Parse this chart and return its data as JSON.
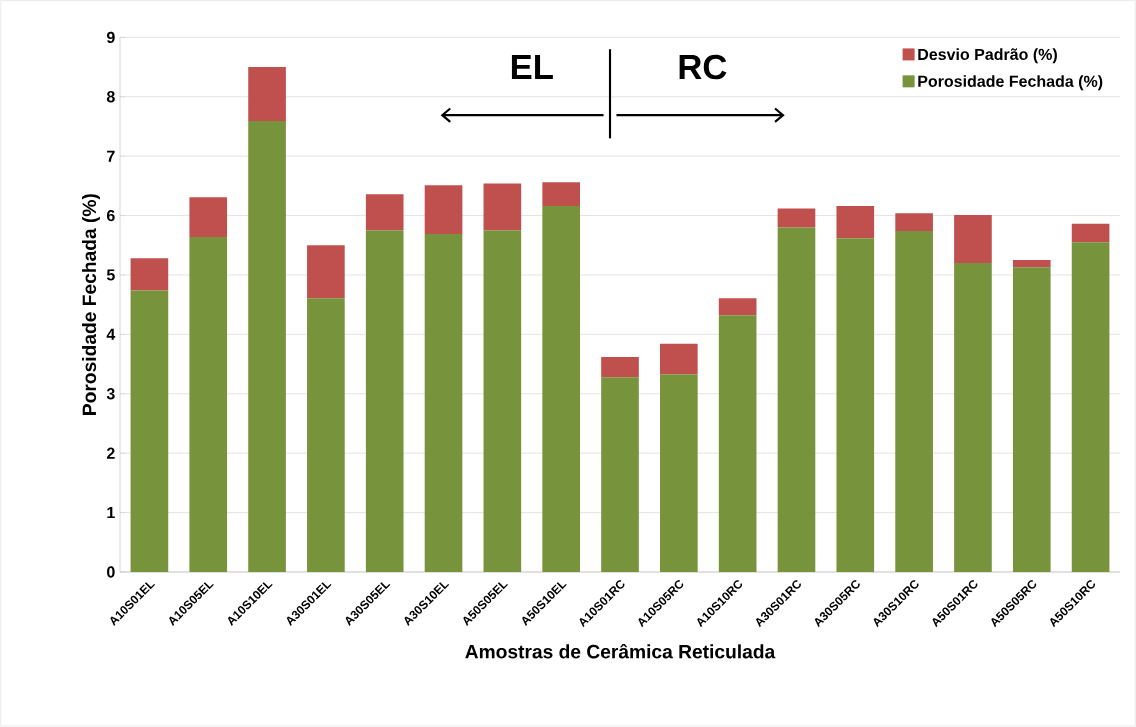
{
  "chart_data": {
    "type": "bar",
    "stacked": true,
    "xlabel": "Amostras de Cerâmica Reticulada",
    "ylabel": "Porosidade Fechada (%)",
    "categories": [
      "A10S01EL",
      "A10S05EL",
      "A10S10EL",
      "A30S01EL",
      "A30S05EL",
      "A30S10EL",
      "A50S05EL",
      "A50S10EL",
      "A10S01RC",
      "A10S05RC",
      "A10S10RC",
      "A30S01RC",
      "A30S05RC",
      "A30S10RC",
      "A50S01RC",
      "A50S05RC",
      "A50S10RC"
    ],
    "series": [
      {
        "name": "Porosidade Fechada (%)",
        "color": "#77933c",
        "values": [
          4.74,
          5.64,
          7.59,
          4.61,
          5.75,
          5.69,
          5.75,
          6.16,
          3.28,
          3.33,
          4.32,
          5.8,
          5.62,
          5.74,
          5.2,
          5.13,
          5.55
        ]
      },
      {
        "name": "Desvio Padrão (%)",
        "color": "#c0504d",
        "values": [
          0.54,
          0.67,
          0.91,
          0.89,
          0.61,
          0.82,
          0.79,
          0.4,
          0.34,
          0.51,
          0.29,
          0.32,
          0.54,
          0.3,
          0.81,
          0.12,
          0.31
        ]
      }
    ],
    "annotations": [
      "EL",
      "RC"
    ],
    "ylim": [
      0,
      9
    ],
    "yticks": [
      0,
      1,
      2,
      3,
      4,
      5,
      6,
      7,
      8,
      9
    ],
    "grid": "y",
    "legend": "top right"
  }
}
